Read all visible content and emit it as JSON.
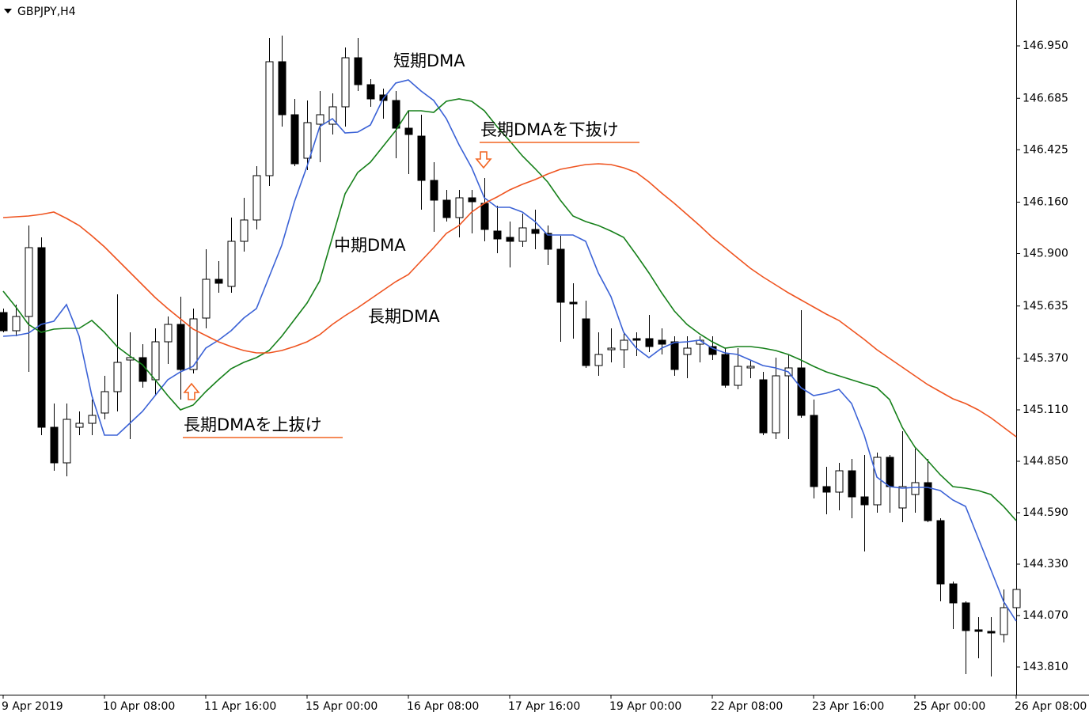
{
  "chart_data": {
    "type": "candlestick",
    "title": "GBPJPY,H4",
    "categories": [
      "9 Apr 2019",
      null,
      null,
      null,
      null,
      null,
      null,
      null,
      "10 Apr 08:00",
      null,
      null,
      null,
      null,
      null,
      null,
      null,
      "11 Apr 16:00",
      null,
      null,
      null,
      null,
      null,
      null,
      null,
      "15 Apr 00:00",
      null,
      null,
      null,
      null,
      null,
      null,
      null,
      "16 Apr 08:00",
      null,
      null,
      null,
      null,
      null,
      null,
      null,
      "17 Apr 16:00",
      null,
      null,
      null,
      null,
      null,
      null,
      null,
      "19 Apr 00:00",
      null,
      null,
      null,
      null,
      null,
      null,
      null,
      "22 Apr 08:00",
      null,
      null,
      null,
      null,
      null,
      null,
      null,
      "23 Apr 16:00",
      null,
      null,
      null,
      null,
      null,
      null,
      null,
      "25 Apr 00:00",
      null,
      null,
      null,
      null,
      null,
      null,
      null,
      "26 Apr 08:00"
    ],
    "open": [
      145.602,
      145.51,
      145.582,
      145.93,
      145.022,
      144.842,
      145.022,
      145.042,
      145.094,
      145.202,
      145.362,
      145.374,
      145.262,
      145.454,
      145.542,
      145.314,
      145.574,
      145.77,
      145.734,
      145.962,
      146.07,
      146.294,
      146.87,
      146.602,
      146.382,
      146.554,
      146.554,
      146.642,
      146.89,
      146.754,
      146.702,
      146.674,
      146.534,
      146.494,
      146.27,
      146.17,
      146.082,
      146.182,
      146.154,
      146.014,
      145.982,
      145.962,
      146.022,
      146.002,
      145.922,
      145.654,
      145.57,
      145.334,
      145.414,
      145.414,
      145.47,
      145.47,
      145.462,
      145.454,
      145.39,
      145.442,
      145.43,
      145.39,
      145.234,
      145.322,
      145.262,
      144.994,
      145.282,
      145.322,
      145.082,
      144.722,
      144.694,
      144.802,
      144.67,
      144.63,
      144.87,
      144.614,
      144.682,
      144.742,
      144.55,
      144.23,
      144.134,
      143.998,
      143.99,
      143.974,
      144.11
    ],
    "high": [
      145.622,
      145.642,
      146.042,
      145.982,
      145.142,
      145.142,
      145.102,
      145.162,
      145.282,
      145.694,
      145.502,
      145.442,
      145.522,
      145.582,
      145.682,
      145.622,
      145.922,
      145.862,
      146.082,
      146.182,
      146.342,
      146.99,
      147.002,
      146.682,
      146.674,
      146.722,
      146.71,
      146.942,
      146.99,
      146.782,
      146.734,
      146.722,
      146.622,
      146.602,
      146.362,
      146.222,
      146.222,
      146.222,
      146.282,
      146.142,
      146.062,
      146.102,
      146.122,
      146.042,
      145.99,
      145.75,
      145.662,
      145.502,
      145.522,
      145.502,
      145.502,
      145.59,
      145.522,
      145.482,
      145.482,
      145.482,
      145.482,
      145.422,
      145.422,
      145.362,
      145.302,
      145.374,
      145.39,
      145.614,
      145.162,
      144.822,
      144.842,
      144.862,
      144.882,
      144.894,
      144.882,
      145.002,
      144.914,
      144.862,
      144.562,
      144.242,
      144.142,
      144.062,
      144.062,
      144.202,
      144.294
    ],
    "low": [
      145.502,
      145.482,
      145.302,
      144.982,
      144.802,
      144.774,
      144.982,
      144.982,
      145.062,
      145.102,
      144.962,
      145.222,
      145.182,
      145.342,
      145.162,
      145.294,
      145.522,
      145.702,
      145.702,
      145.91,
      146.022,
      146.242,
      146.542,
      146.342,
      146.322,
      146.362,
      146.502,
      146.542,
      146.722,
      146.642,
      146.582,
      146.382,
      146.302,
      146.122,
      146.01,
      146.062,
      145.982,
      146.002,
      145.962,
      145.902,
      145.83,
      145.934,
      145.922,
      145.842,
      145.454,
      145.47,
      145.322,
      145.282,
      145.35,
      145.322,
      145.382,
      145.402,
      145.39,
      145.282,
      145.27,
      145.35,
      145.362,
      145.222,
      145.214,
      145.27,
      144.982,
      144.962,
      144.962,
      145.07,
      144.662,
      144.582,
      144.602,
      144.562,
      144.394,
      144.59,
      144.59,
      144.542,
      144.59,
      144.542,
      144.142,
      144.002,
      143.774,
      143.854,
      143.762,
      143.934,
      144.102
    ],
    "close": [
      145.51,
      145.582,
      145.93,
      145.022,
      144.842,
      145.062,
      145.042,
      145.082,
      145.202,
      145.35,
      145.374,
      145.254,
      145.454,
      145.542,
      145.314,
      145.57,
      145.77,
      145.75,
      145.962,
      146.07,
      146.294,
      146.87,
      146.602,
      146.354,
      146.562,
      146.602,
      146.642,
      146.89,
      146.754,
      146.682,
      146.674,
      146.534,
      146.502,
      146.27,
      146.17,
      146.082,
      146.182,
      146.162,
      146.022,
      145.974,
      145.962,
      146.03,
      146.002,
      145.922,
      145.654,
      145.646,
      145.334,
      145.39,
      145.422,
      145.462,
      145.462,
      145.43,
      145.442,
      145.314,
      145.422,
      145.462,
      145.39,
      145.234,
      145.33,
      145.33,
      144.994,
      145.282,
      145.322,
      145.082,
      144.722,
      144.694,
      144.802,
      144.67,
      144.63,
      144.87,
      144.722,
      144.722,
      144.742,
      144.55,
      144.23,
      144.134,
      143.994,
      143.99,
      143.982,
      144.11,
      144.202
    ],
    "up_color": "#ffffff",
    "down_color": "#000000",
    "series": [
      {
        "name": "短期DMA",
        "color": "#3b62d6",
        "label_color": "#2a6ebb",
        "values": [
          145.482,
          145.486,
          145.498,
          145.542,
          145.558,
          145.642,
          145.482,
          145.182,
          144.982,
          144.982,
          145.042,
          145.102,
          145.182,
          145.262,
          145.302,
          145.33,
          145.422,
          145.462,
          145.51,
          145.574,
          145.622,
          145.782,
          145.942,
          146.162,
          146.342,
          146.542,
          146.582,
          146.51,
          146.514,
          146.55,
          146.682,
          146.762,
          146.778,
          146.722,
          146.674,
          146.582,
          146.45,
          146.334,
          146.182,
          146.134,
          146.134,
          146.11,
          146.062,
          145.994,
          145.994,
          145.994,
          145.962,
          145.802,
          145.682,
          145.502,
          145.422,
          145.374,
          145.422,
          145.45,
          145.454,
          145.462,
          145.422,
          145.398,
          145.39,
          145.362,
          145.334,
          145.322,
          145.302,
          145.222,
          145.182,
          145.194,
          145.214,
          145.142,
          144.982,
          144.77,
          144.722,
          144.714,
          144.718,
          144.718,
          144.702,
          144.654,
          144.622,
          144.462,
          144.302,
          144.142,
          144.042
        ]
      },
      {
        "name": "中期DMA",
        "color": "#16801a",
        "label_color": "#3a7d2a",
        "values": [
          145.71,
          145.63,
          145.542,
          145.502,
          145.518,
          145.522,
          145.522,
          145.562,
          145.502,
          145.43,
          145.382,
          145.338,
          145.262,
          145.182,
          145.11,
          145.134,
          145.202,
          145.262,
          145.318,
          145.35,
          145.374,
          145.41,
          145.482,
          145.566,
          145.65,
          145.762,
          145.982,
          146.202,
          146.31,
          146.362,
          146.442,
          146.522,
          146.622,
          146.622,
          146.614,
          146.67,
          146.682,
          146.67,
          146.622,
          146.542,
          146.47,
          146.394,
          146.33,
          146.262,
          146.17,
          146.09,
          146.062,
          146.042,
          146.014,
          145.982,
          145.894,
          145.802,
          145.702,
          145.61,
          145.542,
          145.494,
          145.454,
          145.422,
          145.43,
          145.43,
          145.422,
          145.41,
          145.39,
          145.362,
          145.33,
          145.302,
          145.282,
          145.262,
          145.242,
          145.222,
          145.162,
          145.022,
          144.922,
          144.854,
          144.782,
          144.722,
          144.714,
          144.702,
          144.682,
          144.622,
          144.55
        ]
      },
      {
        "name": "長期DMA",
        "color": "#ef5420",
        "label_color": "#e8442a",
        "values": [
          146.082,
          146.086,
          146.09,
          146.098,
          146.11,
          146.078,
          146.042,
          145.99,
          145.934,
          145.87,
          145.806,
          145.742,
          145.678,
          145.622,
          145.57,
          145.518,
          145.486,
          145.454,
          145.43,
          145.41,
          145.398,
          145.398,
          145.41,
          145.43,
          145.454,
          145.49,
          145.542,
          145.586,
          145.626,
          145.67,
          145.714,
          145.758,
          145.794,
          145.862,
          145.93,
          146.002,
          146.042,
          146.11,
          146.154,
          146.186,
          146.222,
          146.25,
          146.274,
          146.302,
          146.326,
          146.338,
          146.35,
          146.354,
          146.35,
          146.334,
          146.31,
          146.262,
          146.206,
          146.154,
          146.098,
          146.042,
          145.982,
          145.93,
          145.878,
          145.826,
          145.782,
          145.742,
          145.702,
          145.666,
          145.63,
          145.594,
          145.562,
          145.514,
          145.466,
          145.414,
          145.37,
          145.326,
          145.282,
          145.238,
          145.202,
          145.166,
          145.142,
          145.11,
          145.07,
          145.022,
          144.974
        ]
      }
    ],
    "annotations": [
      {
        "text": "長期DMAを下抜け",
        "color": "#f26522"
      },
      {
        "text": "長期DMAを上抜け",
        "color": "#f26522"
      }
    ],
    "ylim": [
      143.67,
      147.182
    ],
    "yticks": [
      {
        "value": 146.95,
        "label": "146.950"
      },
      146.685,
      146.425,
      {
        "value": 146.16,
        "label": "146.160"
      },
      {
        "value": 145.9,
        "label": "145.900"
      },
      145.635,
      {
        "value": 145.37,
        "label": "145.370"
      },
      {
        "value": 145.11,
        "label": "145.110"
      },
      {
        "value": 144.85,
        "label": "144.850"
      },
      {
        "value": 144.59,
        "label": "144.590"
      },
      {
        "value": 144.33,
        "label": "144.330"
      },
      {
        "value": 144.07,
        "label": "144.070"
      },
      {
        "value": 143.81,
        "label": "143.810"
      }
    ],
    "grid": false
  }
}
